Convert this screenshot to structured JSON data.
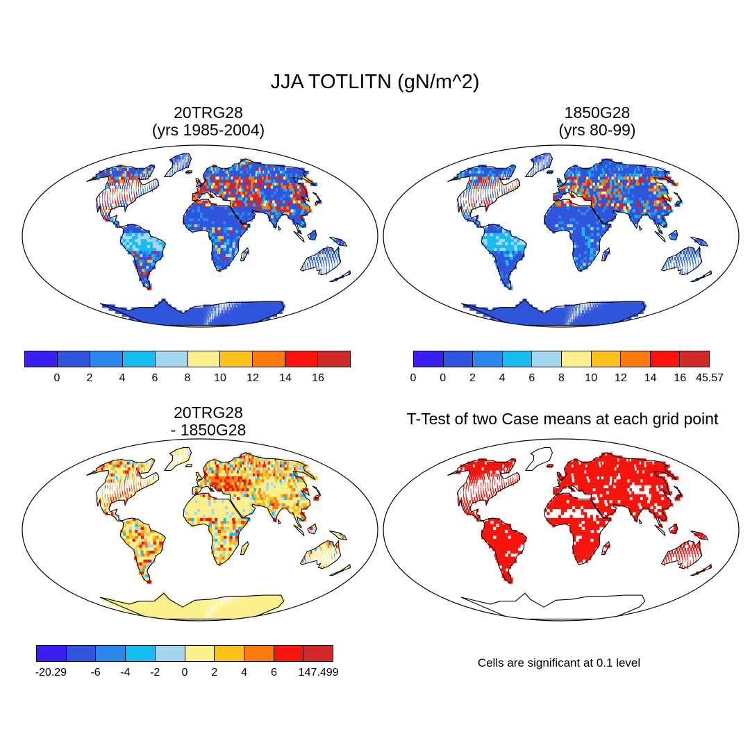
{
  "title": "JJA TOTLITN (gN/m^2)",
  "panels": [
    {
      "id": "p1",
      "title_line1": "20TRG28",
      "title_line2": "(yrs 1985-2004)"
    },
    {
      "id": "p2",
      "title_line1": "1850G28",
      "title_line2": "(yrs 80-99)"
    },
    {
      "id": "p3",
      "title_line1": "20TRG28",
      "title_line2": "- 1850G28"
    },
    {
      "id": "p4",
      "title_line1": "T-Test of two Case means at each grid point"
    }
  ],
  "colorbars": {
    "p1": {
      "colors": [
        "#3a1ff0",
        "#2e55dc",
        "#2a87ee",
        "#16bdf0",
        "#a4d6f0",
        "#fbf08c",
        "#fbc01a",
        "#fb7a0c",
        "#f8140c",
        "#d02a28"
      ],
      "labels": [
        "0",
        "2",
        "4",
        "6",
        "8",
        "10",
        "12",
        "14",
        "16"
      ]
    },
    "p2": {
      "colors": [
        "#3a1ff0",
        "#2e55dc",
        "#2a87ee",
        "#16bdf0",
        "#a4d6f0",
        "#fbf08c",
        "#fbc01a",
        "#fb7a0c",
        "#f8140c",
        "#d02a28"
      ],
      "labels": [
        "0",
        "0",
        "2",
        "4",
        "6",
        "8",
        "10",
        "12",
        "14",
        "16",
        "45.57"
      ]
    },
    "p3": {
      "colors": [
        "#3a1ff0",
        "#2e55dc",
        "#2a87ee",
        "#16bdf0",
        "#a4d6f0",
        "#fbf08c",
        "#fbc01a",
        "#fb7a0c",
        "#f8140c",
        "#d02a28"
      ],
      "labels": [
        "-20.29",
        "-6",
        "-4",
        "-2",
        "0",
        "2",
        "4",
        "6",
        "147.499"
      ]
    }
  },
  "significance_note": "Cells are significant at 0.1 level"
}
